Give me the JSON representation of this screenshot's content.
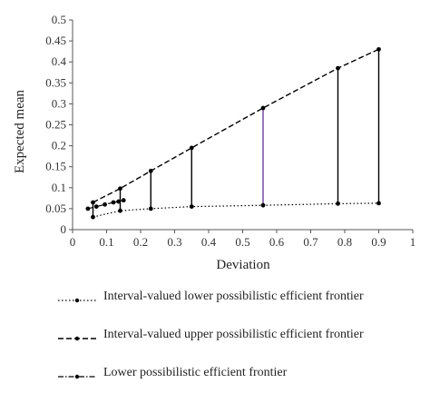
{
  "chart_data": {
    "type": "line",
    "title": "",
    "xlabel": "Deviation",
    "ylabel": "Expected mean",
    "xlim": [
      0,
      1
    ],
    "ylim": [
      0,
      0.5
    ],
    "xticks": [
      "0",
      "0.1",
      "0.2",
      "0.3",
      "0.4",
      "0.5",
      "0.6",
      "0.7",
      "0.8",
      "0.9",
      "1"
    ],
    "yticks": [
      "0",
      "0.05",
      "0.1",
      "0.15",
      "0.2",
      "0.25",
      "0.3",
      "0.35",
      "0.4",
      "0.45",
      "0.5"
    ],
    "grid": false,
    "legend_position": "bottom",
    "series": [
      {
        "name": "Interval-valued lower possibilistic efficient frontier",
        "style": "dotted",
        "x": [
          0.06,
          0.14,
          0.23,
          0.35,
          0.56,
          0.78,
          0.9
        ],
        "y": [
          0.03,
          0.045,
          0.05,
          0.055,
          0.058,
          0.062,
          0.063
        ]
      },
      {
        "name": "Interval-valued upper possibilistic efficient frontier",
        "style": "dashed",
        "x": [
          0.06,
          0.14,
          0.23,
          0.35,
          0.56,
          0.78,
          0.9
        ],
        "y": [
          0.065,
          0.098,
          0.14,
          0.195,
          0.29,
          0.385,
          0.43
        ]
      },
      {
        "name": "Lower possibilistic efficient frontier",
        "style": "dash-dot",
        "x": [
          0.045,
          0.07,
          0.095,
          0.12,
          0.135,
          0.15
        ],
        "y": [
          0.05,
          0.055,
          0.06,
          0.065,
          0.067,
          0.07
        ]
      }
    ],
    "interval_bars": {
      "x": [
        0.06,
        0.14,
        0.23,
        0.35,
        0.56,
        0.78,
        0.9
      ],
      "low": [
        0.03,
        0.045,
        0.05,
        0.055,
        0.058,
        0.062,
        0.063
      ],
      "high": [
        0.065,
        0.098,
        0.14,
        0.195,
        0.29,
        0.385,
        0.43
      ],
      "colors": [
        "#000000",
        "#000000",
        "#000000",
        "#000000",
        "#6b3fa0",
        "#000000",
        "#000000"
      ]
    }
  }
}
